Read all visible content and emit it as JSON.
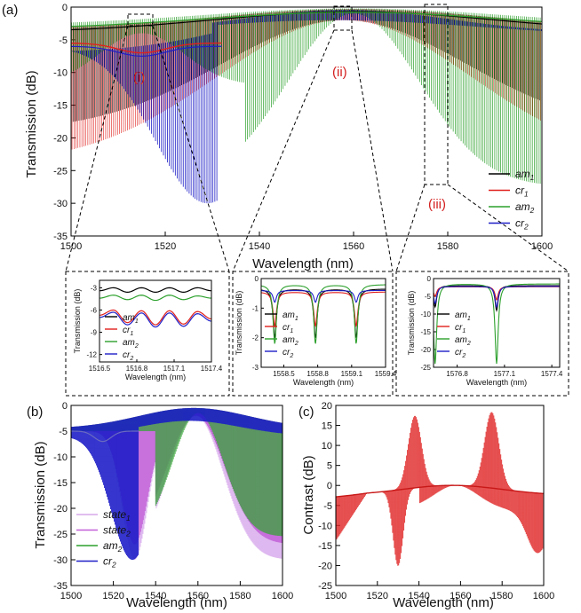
{
  "chart_data": [
    {
      "id": "a-main",
      "panel": "(a)",
      "type": "line",
      "xlabel": "Wavelength (nm)",
      "ylabel": "Transmission (dB)",
      "xlim": [
        1500,
        1600
      ],
      "ylim": [
        -35,
        0
      ],
      "xticks": [
        1500,
        1520,
        1540,
        1560,
        1580,
        1600
      ],
      "yticks": [
        0,
        -5,
        -10,
        -15,
        -20,
        -25,
        -30,
        -35
      ],
      "legend_position": "lower-right",
      "series": [
        {
          "name": "am",
          "sub": "1",
          "color": "#000000",
          "center": 1558,
          "minimum_dip": -19,
          "dip_at": 1590
        },
        {
          "name": "cr",
          "sub": "1",
          "color": "#e0201c",
          "center": 1558,
          "minimum_dip": -24,
          "dip_at": 1592
        },
        {
          "name": "am",
          "sub": "2",
          "color": "#2ca02c",
          "center": 1558,
          "minimum_dip": -27.5,
          "dip_at": 1537
        },
        {
          "name": "cr",
          "sub": "2",
          "color": "#1f1fc8",
          "center": 1558,
          "minimum_dip": -31,
          "dip_at": 1530
        }
      ],
      "annotations": [
        "(i)",
        "(ii)",
        "(iii)"
      ]
    },
    {
      "id": "a-inset-i",
      "type": "line",
      "xlabel": "Wavelength (nm)",
      "ylabel": "Transmission (dB)",
      "xlim": [
        1516.5,
        1517.4
      ],
      "ylim": [
        -13,
        -2
      ],
      "xticks": [
        "1516.5",
        "1516.8",
        "1517.1",
        "1517.4"
      ],
      "yticks": [
        "-3",
        "-6",
        "-9",
        "-12"
      ],
      "series": [
        {
          "name": "am",
          "sub": "1",
          "color": "#000000",
          "values": [
            -3.4,
            -3.0,
            -3.6,
            -3.0,
            -3.6,
            -3.0,
            -3.6,
            -3.0,
            -3.4
          ]
        },
        {
          "name": "cr",
          "sub": "1",
          "color": "#e0201c",
          "values": [
            -6.7,
            -6.0,
            -7.7,
            -6.1,
            -8.0,
            -6.1,
            -7.9,
            -6.2,
            -7.2
          ]
        },
        {
          "name": "am",
          "sub": "2",
          "color": "#2ca02c",
          "values": [
            -4.4,
            -4.0,
            -4.6,
            -4.0,
            -4.7,
            -4.0,
            -4.6,
            -4.1,
            -4.4
          ]
        },
        {
          "name": "cr",
          "sub": "2",
          "color": "#1f1fc8",
          "values": [
            -7.0,
            -6.3,
            -8.0,
            -6.4,
            -8.3,
            -6.4,
            -8.2,
            -6.5,
            -7.5
          ]
        }
      ],
      "legend": [
        "am",
        "cr",
        "am",
        "cr"
      ]
    },
    {
      "id": "a-inset-ii",
      "type": "line",
      "xlabel": "Wavelength (nm)",
      "ylabel": "Transmission (dB)",
      "xlim": [
        1558.3,
        1559.4
      ],
      "ylim": [
        -3,
        0
      ],
      "xticks": [
        "1558.5",
        "1558.8",
        "1559.1",
        "1559.4"
      ],
      "yticks": [
        "0",
        "-1",
        "-2",
        "-3"
      ],
      "dips_at": [
        1558.42,
        1558.78,
        1559.14
      ],
      "series": [
        {
          "name": "am",
          "sub": "1",
          "color": "#000000",
          "baseline": -0.35,
          "dips": [
            -2.0,
            -2.0,
            -2.0
          ]
        },
        {
          "name": "cr",
          "sub": "1",
          "color": "#e0201c",
          "baseline": -0.45,
          "dips": [
            -1.6,
            -1.6,
            -1.6
          ]
        },
        {
          "name": "am",
          "sub": "2",
          "color": "#2ca02c",
          "baseline": -0.2,
          "dips": [
            -2.2,
            -2.2,
            -2.2
          ]
        },
        {
          "name": "cr",
          "sub": "2",
          "color": "#1f1fc8",
          "baseline": -0.4,
          "dips": [
            -0.8,
            -0.8,
            -0.8
          ]
        }
      ]
    },
    {
      "id": "a-inset-iii",
      "type": "line",
      "xlabel": "Wavelength (nm)",
      "ylabel": "Transmission (dB)",
      "xlim": [
        1576.65,
        1577.45
      ],
      "ylim": [
        -25,
        0
      ],
      "xticks": [
        "1576.8",
        "1577.1",
        "1577.4"
      ],
      "yticks": [
        "0",
        "-5",
        "-10",
        "-15",
        "-20",
        "-25"
      ],
      "dips_at": [
        1576.66,
        1577.05
      ],
      "series": [
        {
          "name": "am",
          "sub": "1",
          "color": "#000000",
          "baseline": -2.0,
          "dips": [
            -8,
            -9
          ]
        },
        {
          "name": "cr",
          "sub": "1",
          "color": "#e0201c",
          "baseline": -2.3,
          "dips": [
            -5,
            -6
          ]
        },
        {
          "name": "am",
          "sub": "2",
          "color": "#2ca02c",
          "baseline": -1.5,
          "dips": [
            -24,
            -24
          ]
        },
        {
          "name": "cr",
          "sub": "2",
          "color": "#1f1fc8",
          "baseline": -2.2,
          "dips": [
            -7,
            -8
          ]
        }
      ]
    },
    {
      "id": "b",
      "panel": "(b)",
      "type": "line",
      "xlabel": "Wavelength (nm)",
      "ylabel": "Transmission (dB)",
      "xlim": [
        1500,
        1600
      ],
      "ylim": [
        -35,
        0
      ],
      "xticks": [
        1500,
        1520,
        1540,
        1560,
        1580,
        1600
      ],
      "yticks": [
        0,
        -5,
        -10,
        -15,
        -20,
        -25,
        -30,
        -35
      ],
      "legend_position": "lower-left",
      "series": [
        {
          "name": "state",
          "sub": "1",
          "color": "#d7a8ec",
          "minimum_dip": -30
        },
        {
          "name": "state",
          "sub": "2",
          "color": "#c35fd8",
          "minimum_dip": -27
        },
        {
          "name": "am",
          "sub": "2",
          "color": "#2ca02c",
          "minimum_dip": -26
        },
        {
          "name": "cr",
          "sub": "2",
          "color": "#1f1fc8",
          "minimum_dip": -31
        }
      ]
    },
    {
      "id": "c",
      "panel": "(c)",
      "type": "line",
      "xlabel": "Wavelength (nm)",
      "ylabel": "Contrast (dB)",
      "xlim": [
        1500,
        1600
      ],
      "ylim": [
        -25,
        20
      ],
      "xticks": [
        1500,
        1520,
        1540,
        1560,
        1580,
        1600
      ],
      "yticks": [
        20,
        15,
        10,
        5,
        0,
        -5,
        -10,
        -15,
        -20,
        -25
      ],
      "series": [
        {
          "name": "",
          "color": "#e02828",
          "peaks": [
            [
              1538,
              16
            ],
            [
              1575,
              17
            ]
          ],
          "minimum": [
            1530,
            -21
          ]
        }
      ]
    }
  ]
}
